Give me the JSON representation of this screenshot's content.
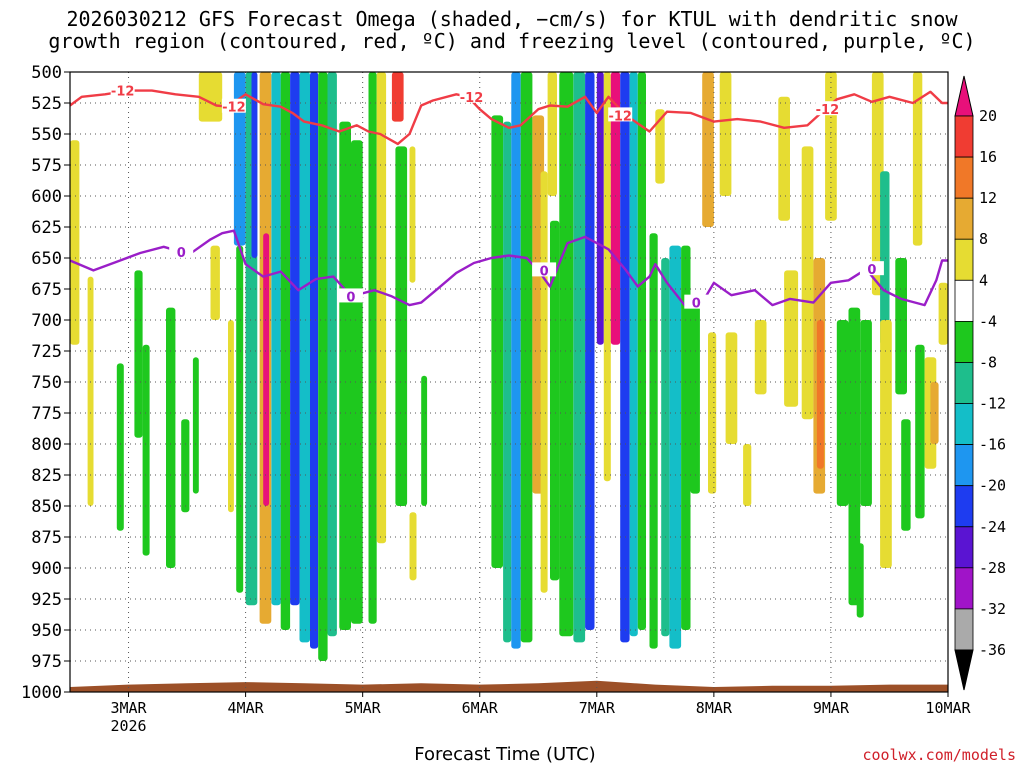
{
  "title": "2026030212 GFS Forecast Omega (shaded, −cm/s) for KTUL with dendritic snow\ngrowth region (contoured, red, ºC) and freezing level (contoured, purple, ºC)",
  "credit": "coolwx.com/models",
  "chart_data": {
    "type": "heatmap",
    "title": "2026030212 GFS Forecast Omega (shaded, −cm/s) for KTUL with dendritic snow growth region (contoured, red, ºC) and freezing level (contoured, purple, ºC)",
    "xlabel": "Forecast Time (UTC)",
    "ylabel": "",
    "x_ticks": [
      {
        "day": 3,
        "label": "3MAR",
        "sublabel": "2026"
      },
      {
        "day": 4,
        "label": "4MAR"
      },
      {
        "day": 5,
        "label": "5MAR"
      },
      {
        "day": 6,
        "label": "6MAR"
      },
      {
        "day": 7,
        "label": "7MAR"
      },
      {
        "day": 8,
        "label": "8MAR"
      },
      {
        "day": 9,
        "label": "9MAR"
      },
      {
        "day": 10,
        "label": "10MAR"
      }
    ],
    "x_range_days": [
      2.5,
      10.0
    ],
    "y_ticks": [
      "500",
      "525",
      "550",
      "575",
      "600",
      "625",
      "650",
      "675",
      "700",
      "725",
      "750",
      "775",
      "800",
      "825",
      "850",
      "875",
      "900",
      "925",
      "950",
      "975",
      "1000"
    ],
    "y_range_hpa": [
      500,
      1000
    ],
    "grid": true,
    "colorbar": {
      "labels": [
        "20",
        "16",
        "12",
        "8",
        "4",
        "-4",
        "-8",
        "-12",
        "-16",
        "-20",
        "-24",
        "-28",
        "-32",
        "-36"
      ],
      "bins": [
        {
          "min": 20,
          "max": null,
          "color": "#e8107a"
        },
        {
          "min": 16,
          "max": 20,
          "color": "#f03c32"
        },
        {
          "min": 12,
          "max": 16,
          "color": "#f07828"
        },
        {
          "min": 8,
          "max": 12,
          "color": "#e6aa32"
        },
        {
          "min": 4,
          "max": 8,
          "color": "#e6dc32"
        },
        {
          "min": -4,
          "max": 4,
          "color": "#ffffff"
        },
        {
          "min": -8,
          "max": -4,
          "color": "#1ec81e"
        },
        {
          "min": -12,
          "max": -8,
          "color": "#1ebe8c"
        },
        {
          "min": -16,
          "max": -12,
          "color": "#14bec8"
        },
        {
          "min": -20,
          "max": -16,
          "color": "#1e96f0"
        },
        {
          "min": -24,
          "max": -20,
          "color": "#1e3cf0"
        },
        {
          "min": -28,
          "max": -24,
          "color": "#5a14d2"
        },
        {
          "min": -32,
          "max": -28,
          "color": "#a014c8"
        },
        {
          "min": -36,
          "max": -32,
          "color": "#aaaaaa"
        },
        {
          "min": null,
          "max": -36,
          "color": "#000000"
        }
      ]
    },
    "contour_snow_growth": {
      "value_label": "-12",
      "color": "#f03c46",
      "label_days": [
        2.95,
        3.9,
        5.93,
        7.2,
        8.97
      ],
      "points": [
        [
          2.5,
          527
        ],
        [
          2.6,
          520
        ],
        [
          2.8,
          518
        ],
        [
          3.0,
          515
        ],
        [
          3.2,
          515
        ],
        [
          3.4,
          518
        ],
        [
          3.6,
          520
        ],
        [
          3.75,
          527
        ],
        [
          3.85,
          528
        ],
        [
          4.0,
          518
        ],
        [
          4.15,
          526
        ],
        [
          4.3,
          528
        ],
        [
          4.4,
          533
        ],
        [
          4.5,
          540
        ],
        [
          4.65,
          543
        ],
        [
          4.8,
          548
        ],
        [
          4.95,
          543
        ],
        [
          5.05,
          548
        ],
        [
          5.15,
          550
        ],
        [
          5.3,
          558
        ],
        [
          5.4,
          550
        ],
        [
          5.5,
          527
        ],
        [
          5.6,
          523
        ],
        [
          5.8,
          518
        ],
        [
          5.9,
          520
        ],
        [
          6.0,
          530
        ],
        [
          6.1,
          538
        ],
        [
          6.25,
          545
        ],
        [
          6.35,
          543
        ],
        [
          6.5,
          530
        ],
        [
          6.6,
          527
        ],
        [
          6.75,
          528
        ],
        [
          6.9,
          520
        ],
        [
          7.0,
          533
        ],
        [
          7.1,
          520
        ],
        [
          7.25,
          535
        ],
        [
          7.45,
          548
        ],
        [
          7.6,
          532
        ],
        [
          7.8,
          533
        ],
        [
          8.0,
          540
        ],
        [
          8.2,
          538
        ],
        [
          8.4,
          540
        ],
        [
          8.6,
          545
        ],
        [
          8.8,
          543
        ],
        [
          8.95,
          530
        ],
        [
          9.05,
          522
        ],
        [
          9.2,
          518
        ],
        [
          9.35,
          524
        ],
        [
          9.5,
          520
        ],
        [
          9.7,
          525
        ],
        [
          9.85,
          516
        ],
        [
          9.95,
          525
        ],
        [
          10.0,
          525
        ]
      ]
    },
    "contour_freezing": {
      "value_label": "0",
      "color": "#9a1ec8",
      "label_days": [
        3.45,
        4.9,
        6.55,
        7.85,
        9.35
      ],
      "points": [
        [
          2.5,
          652
        ],
        [
          2.7,
          660
        ],
        [
          2.9,
          653
        ],
        [
          3.1,
          646
        ],
        [
          3.3,
          641
        ],
        [
          3.45,
          645
        ],
        [
          3.55,
          645
        ],
        [
          3.7,
          635
        ],
        [
          3.8,
          630
        ],
        [
          3.9,
          628
        ],
        [
          4.0,
          655
        ],
        [
          4.15,
          665
        ],
        [
          4.3,
          661
        ],
        [
          4.45,
          676
        ],
        [
          4.6,
          667
        ],
        [
          4.75,
          665
        ],
        [
          4.9,
          681
        ],
        [
          5.1,
          676
        ],
        [
          5.25,
          681
        ],
        [
          5.4,
          688
        ],
        [
          5.5,
          686
        ],
        [
          5.65,
          674
        ],
        [
          5.8,
          662
        ],
        [
          5.95,
          654
        ],
        [
          6.1,
          650
        ],
        [
          6.25,
          648
        ],
        [
          6.4,
          650
        ],
        [
          6.5,
          660
        ],
        [
          6.6,
          673
        ],
        [
          6.75,
          638
        ],
        [
          6.9,
          633
        ],
        [
          7.0,
          638
        ],
        [
          7.1,
          643
        ],
        [
          7.25,
          660
        ],
        [
          7.35,
          673
        ],
        [
          7.45,
          665
        ],
        [
          7.5,
          655
        ],
        [
          7.6,
          670
        ],
        [
          7.75,
          688
        ],
        [
          7.9,
          686
        ],
        [
          8.0,
          670
        ],
        [
          8.15,
          680
        ],
        [
          8.35,
          676
        ],
        [
          8.5,
          688
        ],
        [
          8.65,
          683
        ],
        [
          8.85,
          686
        ],
        [
          9.0,
          670
        ],
        [
          9.15,
          668
        ],
        [
          9.3,
          659
        ],
        [
          9.45,
          676
        ],
        [
          9.6,
          683
        ],
        [
          9.8,
          688
        ],
        [
          9.9,
          668
        ],
        [
          9.95,
          652
        ],
        [
          10.0,
          652
        ]
      ]
    },
    "omega_features": [
      {
        "x0": 2.5,
        "x1": 2.58,
        "p0": 555,
        "p1": 720,
        "c": 4
      },
      {
        "x0": 2.65,
        "x1": 2.7,
        "p0": 665,
        "p1": 850,
        "c": 4
      },
      {
        "x0": 2.9,
        "x1": 2.96,
        "p0": 735,
        "p1": 870,
        "c": 6
      },
      {
        "x0": 3.05,
        "x1": 3.12,
        "p0": 660,
        "p1": 795,
        "c": 6
      },
      {
        "x0": 3.12,
        "x1": 3.18,
        "p0": 720,
        "p1": 890,
        "c": 6
      },
      {
        "x0": 3.32,
        "x1": 3.4,
        "p0": 690,
        "p1": 900,
        "c": 6
      },
      {
        "x0": 3.45,
        "x1": 3.52,
        "p0": 780,
        "p1": 855,
        "c": 6
      },
      {
        "x0": 3.55,
        "x1": 3.6,
        "p0": 730,
        "p1": 840,
        "c": 6
      },
      {
        "x0": 3.6,
        "x1": 3.8,
        "p0": 500,
        "p1": 540,
        "c": 4
      },
      {
        "x0": 3.7,
        "x1": 3.78,
        "p0": 640,
        "p1": 700,
        "c": 4
      },
      {
        "x0": 3.85,
        "x1": 3.9,
        "p0": 700,
        "p1": 855,
        "c": 4
      },
      {
        "x0": 3.9,
        "x1": 4.0,
        "p0": 500,
        "p1": 640,
        "c": 9
      },
      {
        "x0": 3.92,
        "x1": 3.98,
        "p0": 640,
        "p1": 920,
        "c": 6
      },
      {
        "x0": 4.0,
        "x1": 4.1,
        "p0": 500,
        "p1": 930,
        "c": 7
      },
      {
        "x0": 4.05,
        "x1": 4.1,
        "p0": 500,
        "p1": 650,
        "c": 10
      },
      {
        "x0": 4.12,
        "x1": 4.22,
        "p0": 500,
        "p1": 945,
        "c": 3
      },
      {
        "x0": 4.15,
        "x1": 4.2,
        "p0": 630,
        "p1": 850,
        "c": 0
      },
      {
        "x0": 4.22,
        "x1": 4.3,
        "p0": 500,
        "p1": 930,
        "c": 8
      },
      {
        "x0": 4.3,
        "x1": 4.38,
        "p0": 500,
        "p1": 950,
        "c": 6
      },
      {
        "x0": 4.38,
        "x1": 4.46,
        "p0": 500,
        "p1": 930,
        "c": 10
      },
      {
        "x0": 4.46,
        "x1": 4.55,
        "p0": 500,
        "p1": 960,
        "c": 8
      },
      {
        "x0": 4.55,
        "x1": 4.62,
        "p0": 500,
        "p1": 965,
        "c": 10
      },
      {
        "x0": 4.62,
        "x1": 4.7,
        "p0": 500,
        "p1": 975,
        "c": 6
      },
      {
        "x0": 4.7,
        "x1": 4.78,
        "p0": 500,
        "p1": 955,
        "c": 7
      },
      {
        "x0": 4.8,
        "x1": 4.9,
        "p0": 540,
        "p1": 950,
        "c": 6
      },
      {
        "x0": 4.9,
        "x1": 5.0,
        "p0": 555,
        "p1": 945,
        "c": 6
      },
      {
        "x0": 5.05,
        "x1": 5.12,
        "p0": 500,
        "p1": 945,
        "c": 6
      },
      {
        "x0": 5.12,
        "x1": 5.2,
        "p0": 500,
        "p1": 880,
        "c": 4
      },
      {
        "x0": 5.28,
        "x1": 5.38,
        "p0": 560,
        "p1": 850,
        "c": 6
      },
      {
        "x0": 5.25,
        "x1": 5.35,
        "p0": 500,
        "p1": 540,
        "c": 1
      },
      {
        "x0": 5.4,
        "x1": 5.45,
        "p0": 560,
        "p1": 670,
        "c": 4
      },
      {
        "x0": 5.4,
        "x1": 5.46,
        "p0": 855,
        "p1": 910,
        "c": 4
      },
      {
        "x0": 5.5,
        "x1": 5.55,
        "p0": 745,
        "p1": 850,
        "c": 6
      },
      {
        "x0": 6.1,
        "x1": 6.2,
        "p0": 535,
        "p1": 900,
        "c": 6
      },
      {
        "x0": 6.2,
        "x1": 6.27,
        "p0": 540,
        "p1": 960,
        "c": 7
      },
      {
        "x0": 6.27,
        "x1": 6.35,
        "p0": 500,
        "p1": 965,
        "c": 9
      },
      {
        "x0": 6.35,
        "x1": 6.45,
        "p0": 500,
        "p1": 960,
        "c": 6
      },
      {
        "x0": 6.45,
        "x1": 6.55,
        "p0": 535,
        "p1": 840,
        "c": 3
      },
      {
        "x0": 6.52,
        "x1": 6.58,
        "p0": 580,
        "p1": 920,
        "c": 4
      },
      {
        "x0": 6.58,
        "x1": 6.66,
        "p0": 500,
        "p1": 600,
        "c": 4
      },
      {
        "x0": 6.6,
        "x1": 6.68,
        "p0": 620,
        "p1": 910,
        "c": 6
      },
      {
        "x0": 6.68,
        "x1": 6.8,
        "p0": 500,
        "p1": 955,
        "c": 6
      },
      {
        "x0": 6.8,
        "x1": 6.9,
        "p0": 500,
        "p1": 960,
        "c": 7
      },
      {
        "x0": 6.9,
        "x1": 6.98,
        "p0": 500,
        "p1": 950,
        "c": 10
      },
      {
        "x0": 7.0,
        "x1": 7.06,
        "p0": 500,
        "p1": 720,
        "c": 11
      },
      {
        "x0": 7.06,
        "x1": 7.12,
        "p0": 500,
        "p1": 830,
        "c": 4
      },
      {
        "x0": 7.12,
        "x1": 7.2,
        "p0": 500,
        "p1": 720,
        "c": 0
      },
      {
        "x0": 7.2,
        "x1": 7.28,
        "p0": 500,
        "p1": 960,
        "c": 10
      },
      {
        "x0": 7.28,
        "x1": 7.35,
        "p0": 500,
        "p1": 955,
        "c": 8
      },
      {
        "x0": 7.35,
        "x1": 7.42,
        "p0": 500,
        "p1": 950,
        "c": 6
      },
      {
        "x0": 7.45,
        "x1": 7.52,
        "p0": 630,
        "p1": 965,
        "c": 6
      },
      {
        "x0": 7.5,
        "x1": 7.58,
        "p0": 530,
        "p1": 590,
        "c": 4
      },
      {
        "x0": 7.55,
        "x1": 7.62,
        "p0": 650,
        "p1": 955,
        "c": 7
      },
      {
        "x0": 7.62,
        "x1": 7.72,
        "p0": 640,
        "p1": 965,
        "c": 8
      },
      {
        "x0": 7.72,
        "x1": 7.8,
        "p0": 640,
        "p1": 950,
        "c": 6
      },
      {
        "x0": 7.8,
        "x1": 7.88,
        "p0": 680,
        "p1": 840,
        "c": 6
      },
      {
        "x0": 7.9,
        "x1": 8.0,
        "p0": 500,
        "p1": 625,
        "c": 3
      },
      {
        "x0": 7.95,
        "x1": 8.02,
        "p0": 710,
        "p1": 840,
        "c": 4
      },
      {
        "x0": 8.05,
        "x1": 8.15,
        "p0": 500,
        "p1": 600,
        "c": 4
      },
      {
        "x0": 8.1,
        "x1": 8.2,
        "p0": 710,
        "p1": 800,
        "c": 4
      },
      {
        "x0": 8.25,
        "x1": 8.32,
        "p0": 800,
        "p1": 850,
        "c": 4
      },
      {
        "x0": 8.35,
        "x1": 8.45,
        "p0": 700,
        "p1": 760,
        "c": 4
      },
      {
        "x0": 8.55,
        "x1": 8.65,
        "p0": 520,
        "p1": 620,
        "c": 4
      },
      {
        "x0": 8.6,
        "x1": 8.72,
        "p0": 660,
        "p1": 770,
        "c": 4
      },
      {
        "x0": 8.75,
        "x1": 8.85,
        "p0": 560,
        "p1": 780,
        "c": 4
      },
      {
        "x0": 8.85,
        "x1": 8.95,
        "p0": 650,
        "p1": 840,
        "c": 3
      },
      {
        "x0": 8.88,
        "x1": 8.94,
        "p0": 700,
        "p1": 820,
        "c": 2
      },
      {
        "x0": 8.95,
        "x1": 9.05,
        "p0": 500,
        "p1": 620,
        "c": 4
      },
      {
        "x0": 9.05,
        "x1": 9.15,
        "p0": 700,
        "p1": 850,
        "c": 6
      },
      {
        "x0": 9.15,
        "x1": 9.25,
        "p0": 690,
        "p1": 930,
        "c": 6
      },
      {
        "x0": 9.25,
        "x1": 9.35,
        "p0": 700,
        "p1": 850,
        "c": 6
      },
      {
        "x0": 9.35,
        "x1": 9.45,
        "p0": 500,
        "p1": 680,
        "c": 4
      },
      {
        "x0": 9.42,
        "x1": 9.5,
        "p0": 580,
        "p1": 720,
        "c": 7
      },
      {
        "x0": 9.42,
        "x1": 9.52,
        "p0": 700,
        "p1": 900,
        "c": 4
      },
      {
        "x0": 9.55,
        "x1": 9.65,
        "p0": 650,
        "p1": 760,
        "c": 6
      },
      {
        "x0": 9.6,
        "x1": 9.68,
        "p0": 780,
        "p1": 870,
        "c": 6
      },
      {
        "x0": 9.7,
        "x1": 9.78,
        "p0": 500,
        "p1": 640,
        "c": 4
      },
      {
        "x0": 9.72,
        "x1": 9.8,
        "p0": 720,
        "p1": 860,
        "c": 6
      },
      {
        "x0": 9.8,
        "x1": 9.9,
        "p0": 730,
        "p1": 820,
        "c": 4
      },
      {
        "x0": 9.85,
        "x1": 9.92,
        "p0": 750,
        "p1": 800,
        "c": 3
      },
      {
        "x0": 9.92,
        "x1": 10.0,
        "p0": 670,
        "p1": 720,
        "c": 4
      },
      {
        "x0": 9.22,
        "x1": 9.28,
        "p0": 880,
        "p1": 940,
        "c": 6
      }
    ],
    "surface_terrain": {
      "color": "#9c5028",
      "points": [
        [
          2.5,
          996
        ],
        [
          3.0,
          994
        ],
        [
          3.5,
          993
        ],
        [
          4.0,
          992
        ],
        [
          4.5,
          993
        ],
        [
          5.0,
          994
        ],
        [
          5.5,
          993
        ],
        [
          6.0,
          994
        ],
        [
          6.5,
          993
        ],
        [
          7.0,
          991
        ],
        [
          7.5,
          994
        ],
        [
          8.0,
          996
        ],
        [
          8.5,
          995
        ],
        [
          9.0,
          995
        ],
        [
          9.5,
          994
        ],
        [
          10.0,
          994
        ],
        [
          10.0,
          1000
        ],
        [
          2.5,
          1000
        ]
      ]
    }
  }
}
